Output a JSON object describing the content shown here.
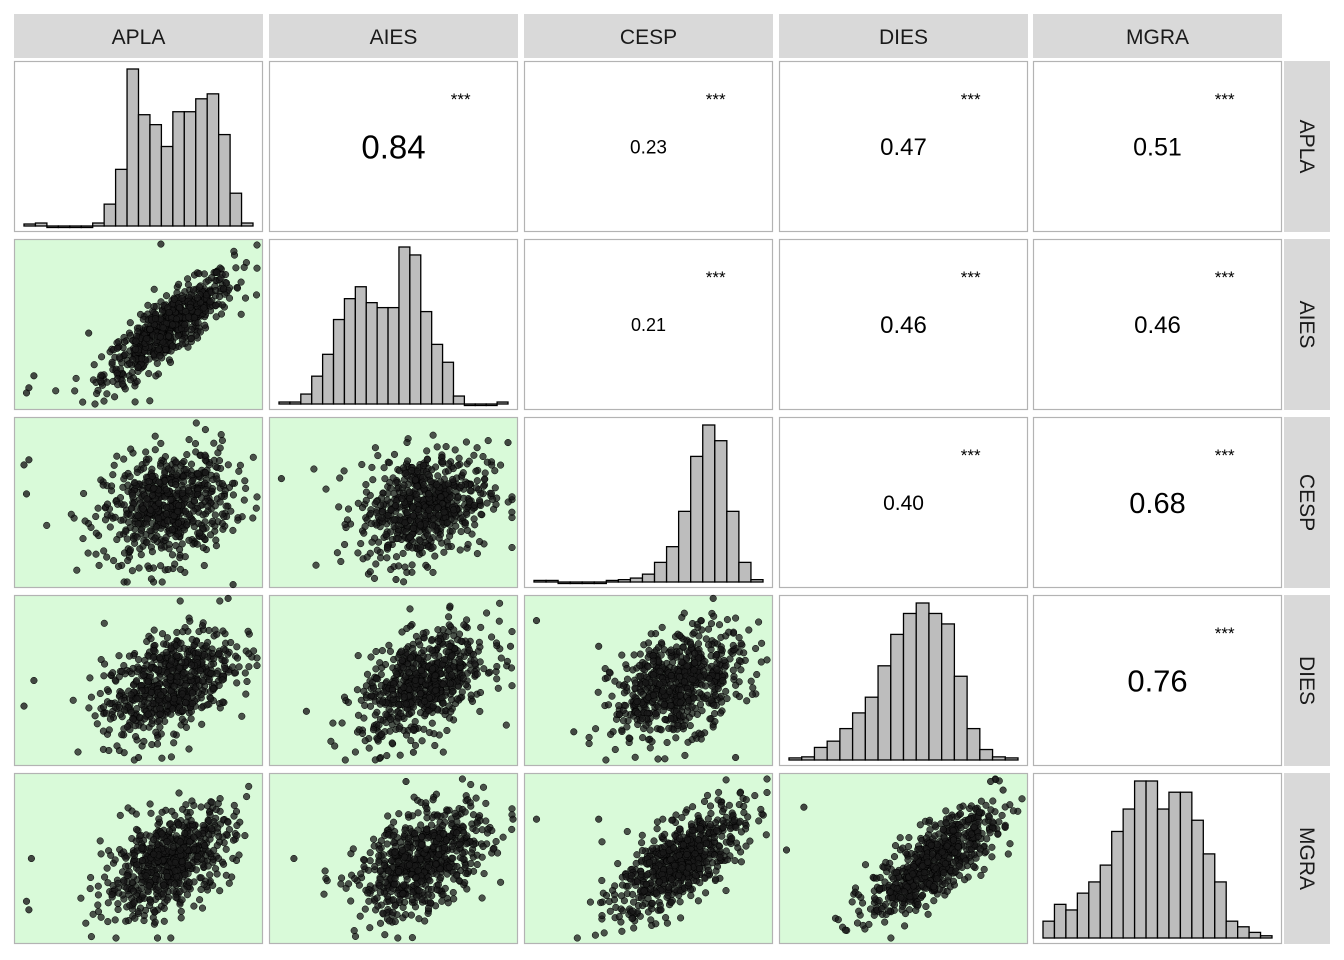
{
  "chart_data": {
    "type": "scatter-matrix",
    "variables": [
      "APLA",
      "AIES",
      "CESP",
      "DIES",
      "MGRA"
    ],
    "colors": {
      "strip": "#d9d9d9",
      "scatter_bg": "#d9fad9",
      "bar_fill": "#bdbdbd",
      "point": "#1a1a1a",
      "border": "#b3b3b3"
    },
    "correlations": [
      {
        "row": 0,
        "col": 1,
        "value": "0.84",
        "stars": "***",
        "size": 33
      },
      {
        "row": 0,
        "col": 2,
        "value": "0.23",
        "stars": "***",
        "size": 19
      },
      {
        "row": 0,
        "col": 3,
        "value": "0.47",
        "stars": "***",
        "size": 24
      },
      {
        "row": 0,
        "col": 4,
        "value": "0.51",
        "stars": "***",
        "size": 25
      },
      {
        "row": 1,
        "col": 2,
        "value": "0.21",
        "stars": "***",
        "size": 18
      },
      {
        "row": 1,
        "col": 3,
        "value": "0.46",
        "stars": "***",
        "size": 24
      },
      {
        "row": 1,
        "col": 4,
        "value": "0.46",
        "stars": "***",
        "size": 24
      },
      {
        "row": 2,
        "col": 3,
        "value": "0.40",
        "stars": "***",
        "size": 21
      },
      {
        "row": 2,
        "col": 4,
        "value": "0.68",
        "stars": "***",
        "size": 29
      },
      {
        "row": 3,
        "col": 4,
        "value": "0.76",
        "stars": "***",
        "size": 31
      }
    ],
    "histograms": [
      {
        "var": "APLA",
        "counts": [
          2,
          3,
          0,
          0,
          0,
          0,
          3,
          22,
          57,
          158,
          112,
          102,
          80,
          115,
          115,
          128,
          133,
          92,
          33,
          3
        ]
      },
      {
        "var": "AIES",
        "counts": [
          2,
          2,
          10,
          28,
          50,
          85,
          106,
          118,
          102,
          97,
          97,
          158,
          150,
          93,
          60,
          42,
          8,
          0,
          0,
          0,
          2
        ]
      },
      {
        "var": "CESP",
        "counts": [
          2,
          2,
          0,
          0,
          0,
          0,
          2,
          3,
          5,
          10,
          25,
          45,
          90,
          160,
          200,
          180,
          90,
          25,
          3
        ]
      },
      {
        "var": "DIES",
        "counts": [
          2,
          3,
          12,
          18,
          30,
          45,
          60,
          90,
          120,
          140,
          150,
          140,
          130,
          80,
          30,
          10,
          3,
          2
        ]
      },
      {
        "var": "MGRA",
        "counts": [
          15,
          30,
          25,
          40,
          50,
          65,
          95,
          115,
          140,
          140,
          115,
          130,
          130,
          105,
          75,
          50,
          15,
          10,
          5,
          2
        ]
      }
    ],
    "scatter_shapes": [
      {
        "row": 1,
        "col": 0,
        "corr": 0.84,
        "outliers": [
          [
            0.05,
            0.1
          ],
          [
            0.06,
            0.13
          ],
          [
            0.08,
            0.2
          ],
          [
            0.59,
            0.97
          ],
          [
            0.3,
            0.45
          ]
        ]
      },
      {
        "row": 2,
        "col": 0,
        "corr": 0.23,
        "outliers": [
          [
            0.04,
            0.72
          ],
          [
            0.06,
            0.75
          ],
          [
            0.05,
            0.55
          ],
          [
            0.88,
            0.02
          ],
          [
            0.65,
            0.3
          ]
        ]
      },
      {
        "row": 2,
        "col": 1,
        "corr": 0.21,
        "outliers": [
          [
            0.96,
            0.85
          ],
          [
            0.51,
            0.05
          ],
          [
            0.05,
            0.64
          ]
        ]
      },
      {
        "row": 3,
        "col": 0,
        "corr": 0.47,
        "outliers": [
          [
            0.04,
            0.35
          ],
          [
            0.08,
            0.5
          ],
          [
            0.86,
            0.98
          ],
          [
            0.5,
            0.05
          ]
        ]
      },
      {
        "row": 3,
        "col": 1,
        "corr": 0.46,
        "outliers": [
          [
            0.97,
            0.7
          ],
          [
            0.15,
            0.32
          ],
          [
            0.58,
            0.08
          ]
        ]
      },
      {
        "row": 3,
        "col": 2,
        "corr": 0.4,
        "outliers": [
          [
            0.05,
            0.85
          ],
          [
            0.3,
            0.7
          ],
          [
            0.76,
            0.98
          ],
          [
            0.85,
            0.05
          ],
          [
            0.2,
            0.2
          ]
        ]
      },
      {
        "row": 4,
        "col": 0,
        "corr": 0.51,
        "outliers": [
          [
            0.07,
            0.5
          ],
          [
            0.05,
            0.25
          ],
          [
            0.06,
            0.2
          ]
        ]
      },
      {
        "row": 4,
        "col": 1,
        "corr": 0.46,
        "outliers": [
          [
            0.98,
            0.73
          ],
          [
            0.1,
            0.5
          ],
          [
            0.55,
            0.95
          ]
        ]
      },
      {
        "row": 4,
        "col": 2,
        "corr": 0.68,
        "outliers": [
          [
            0.05,
            0.73
          ],
          [
            0.3,
            0.73
          ],
          [
            0.55,
            0.2
          ]
        ]
      },
      {
        "row": 4,
        "col": 3,
        "corr": 0.76,
        "outliers": [
          [
            0.03,
            0.55
          ],
          [
            0.1,
            0.8
          ],
          [
            0.9,
            0.9
          ],
          [
            0.85,
            0.95
          ]
        ]
      }
    ]
  }
}
